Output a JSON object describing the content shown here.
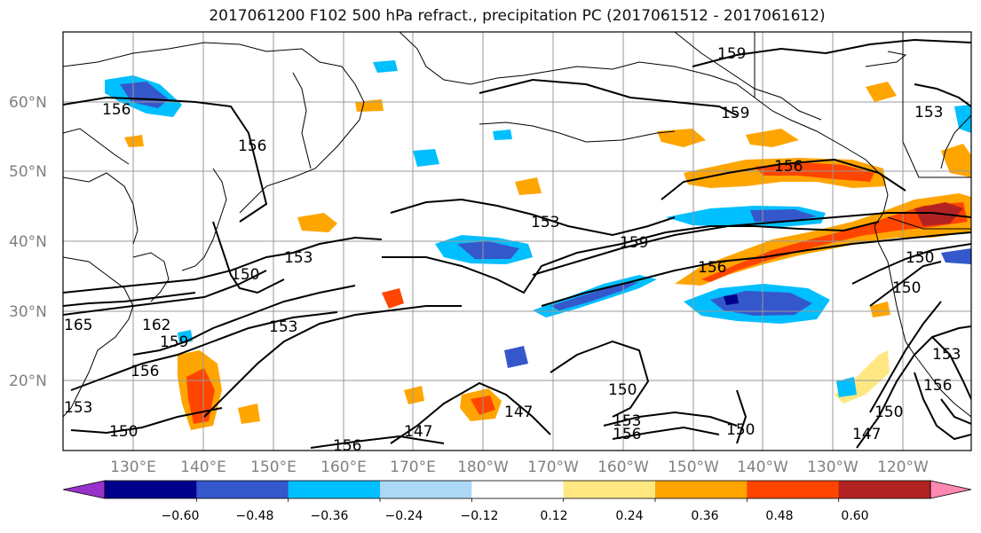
{
  "title": "2017061200 F102 500 hPa refract., precipitation PC (2017061512 - 2017061612)",
  "map": {
    "lat_ticks": [
      "60°N",
      "50°N",
      "40°N",
      "30°N",
      "20°N"
    ],
    "lon_ticks": [
      "130°E",
      "140°E",
      "150°E",
      "160°E",
      "170°E",
      "180°W",
      "170°W",
      "160°W",
      "150°W",
      "140°W",
      "130°W",
      "120°W"
    ],
    "contour_labels": [
      "159",
      "156",
      "156",
      "159",
      "156",
      "153",
      "159",
      "153",
      "150",
      "156",
      "150",
      "153",
      "162",
      "159",
      "165",
      "156",
      "153",
      "150",
      "150",
      "147",
      "150",
      "153",
      "156",
      "147",
      "150",
      "150",
      "147",
      "153",
      "156",
      "156",
      "153"
    ]
  },
  "colorbar": {
    "ticks": [
      "−0.60",
      "−0.48",
      "−0.36",
      "−0.24",
      "−0.12",
      "0.12",
      "0.24",
      "0.36",
      "0.48",
      "0.60"
    ],
    "colors": [
      "#9932cc",
      "#00008b",
      "#3557cc",
      "#00bfff",
      "#add8f5",
      "#ffffff",
      "#ffe882",
      "#ffa500",
      "#ff4500",
      "#b22222",
      "#ff88b0"
    ]
  },
  "colors": {
    "grid": "#999999",
    "coast": "#000000",
    "contour": "#000000"
  }
}
